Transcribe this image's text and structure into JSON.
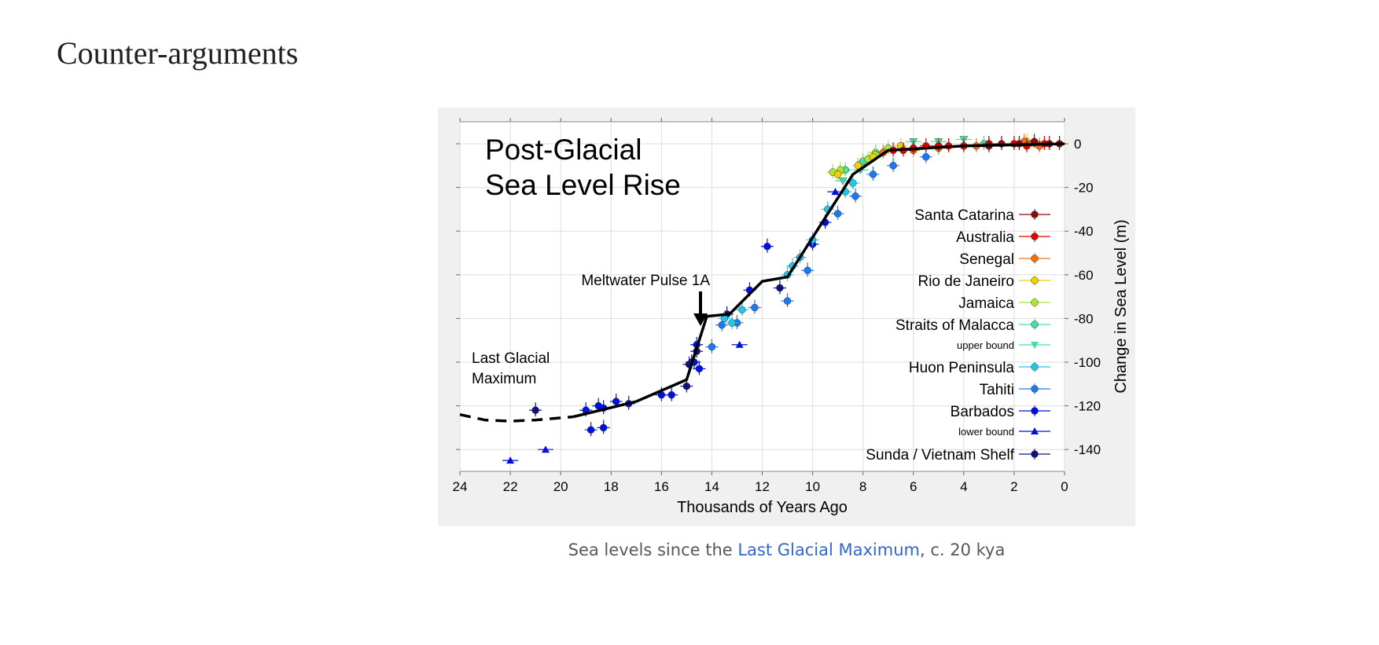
{
  "heading": "Counter-arguments",
  "caption": {
    "prefix": "Sea levels since the ",
    "link": "Last Glacial Maximum",
    "suffix": ", c. 20 kya"
  },
  "chart_data": {
    "type": "scatter",
    "title": [
      "Post-Glacial",
      "Sea Level Rise"
    ],
    "xlabel": "Thousands of Years Ago",
    "ylabel": "Change in Sea Level (m)",
    "xlim": [
      24,
      0
    ],
    "ylim": [
      -150,
      10
    ],
    "xticks": [
      24,
      22,
      20,
      18,
      16,
      14,
      12,
      10,
      8,
      6,
      4,
      2,
      0
    ],
    "yticks": [
      0,
      -20,
      -40,
      -60,
      -80,
      -100,
      -120,
      -140
    ],
    "grid": true,
    "legend_position": "right",
    "annotations": {
      "mwp": "Meltwater Pulse 1A",
      "lgm": [
        "Last Glacial",
        "Maximum"
      ]
    },
    "trend_line": {
      "dashed": [
        [
          24,
          -124
        ],
        [
          23,
          -126.5
        ],
        [
          22,
          -127
        ],
        [
          21,
          -126.5
        ],
        [
          20,
          -125.5
        ],
        [
          19.5,
          -125
        ]
      ],
      "solid": [
        [
          19.5,
          -125
        ],
        [
          17,
          -118
        ],
        [
          15,
          -108
        ],
        [
          14.2,
          -79
        ],
        [
          13.3,
          -78
        ],
        [
          12,
          -63
        ],
        [
          11,
          -61
        ],
        [
          8.4,
          -14
        ],
        [
          7,
          -3
        ],
        [
          4,
          -1
        ],
        [
          0,
          0
        ]
      ]
    },
    "series": [
      {
        "name": "Santa Catarina",
        "color": "#8b0a0a",
        "marker": "circle",
        "small": false,
        "points": [
          [
            3,
            -1
          ],
          [
            2.5,
            0
          ],
          [
            1.2,
            1
          ],
          [
            0.6,
            0
          ],
          [
            0.2,
            0
          ],
          [
            1.8,
            0
          ]
        ]
      },
      {
        "name": "Australia",
        "color": "#e00000",
        "marker": "circle",
        "small": false,
        "points": [
          [
            6.8,
            -3
          ],
          [
            6,
            -2
          ],
          [
            5.5,
            -1
          ],
          [
            5,
            -1
          ],
          [
            4,
            -1
          ],
          [
            3,
            0
          ],
          [
            2,
            0
          ],
          [
            1.5,
            -1
          ],
          [
            0.8,
            0
          ],
          [
            6.4,
            -3
          ],
          [
            4.6,
            -1
          ]
        ]
      },
      {
        "name": "Senegal",
        "color": "#f07010",
        "marker": "circle",
        "small": false,
        "points": [
          [
            7.2,
            -4
          ],
          [
            6,
            -3
          ],
          [
            5,
            -2
          ],
          [
            3.5,
            -1
          ],
          [
            2,
            0
          ],
          [
            1,
            -1
          ],
          [
            1.6,
            1
          ]
        ]
      },
      {
        "name": "Rio de Janeiro",
        "color": "#f0d000",
        "marker": "circle",
        "small": false,
        "points": [
          [
            9.0,
            -14
          ],
          [
            8.2,
            -10
          ],
          [
            7.6,
            -6
          ],
          [
            5,
            -1
          ],
          [
            3,
            0
          ],
          [
            1.5,
            1
          ],
          [
            6.5,
            -1
          ]
        ]
      },
      {
        "name": "Jamaica",
        "color": "#a8e830",
        "marker": "circle",
        "small": false,
        "points": [
          [
            9.2,
            -13
          ],
          [
            8.9,
            -12
          ],
          [
            7.5,
            -5
          ],
          [
            7,
            -2
          ],
          [
            6.5,
            -1
          ],
          [
            7.8,
            -7
          ]
        ]
      },
      {
        "name": "Straits of Malacca",
        "color": "#40e0a0",
        "marker": "circle",
        "small": false,
        "points": [
          [
            8.7,
            -12
          ],
          [
            8,
            -8
          ],
          [
            7.5,
            -4
          ],
          [
            6,
            -2
          ],
          [
            4,
            -1
          ],
          [
            1,
            -1
          ],
          [
            3.2,
            0
          ]
        ]
      },
      {
        "name": "upper bound",
        "color": "#40e0a0",
        "marker": "triangle-down",
        "small": true,
        "points": [
          [
            8.8,
            -17
          ],
          [
            8.1,
            -12
          ],
          [
            6,
            1
          ],
          [
            5,
            1
          ],
          [
            4,
            2
          ]
        ]
      },
      {
        "name": "Huon Peninsula",
        "color": "#20c8e8",
        "marker": "circle",
        "small": false,
        "points": [
          [
            13.5,
            -80
          ],
          [
            12.8,
            -76
          ],
          [
            11,
            -60
          ],
          [
            10.5,
            -52
          ],
          [
            10,
            -44
          ],
          [
            9.4,
            -30
          ],
          [
            8.7,
            -22
          ],
          [
            8.4,
            -18
          ],
          [
            13.2,
            -82
          ],
          [
            10.8,
            -56
          ]
        ]
      },
      {
        "name": "Tahiti",
        "color": "#1e78f0",
        "marker": "circle",
        "small": false,
        "points": [
          [
            13.6,
            -83
          ],
          [
            13,
            -82
          ],
          [
            12.3,
            -75
          ],
          [
            11,
            -72
          ],
          [
            10.2,
            -58
          ],
          [
            9,
            -32
          ],
          [
            8.3,
            -24
          ],
          [
            7.6,
            -14
          ],
          [
            6.8,
            -10
          ],
          [
            5.5,
            -6
          ],
          [
            14,
            -93
          ]
        ]
      },
      {
        "name": "Barbados",
        "color": "#0010e0",
        "marker": "circle",
        "small": false,
        "points": [
          [
            19,
            -122
          ],
          [
            18.5,
            -120
          ],
          [
            18.3,
            -121
          ],
          [
            17.8,
            -118
          ],
          [
            17.3,
            -119
          ],
          [
            16,
            -115
          ],
          [
            15.6,
            -115
          ],
          [
            14.7,
            -100
          ],
          [
            14.5,
            -103
          ],
          [
            12.5,
            -67
          ],
          [
            11.8,
            -47
          ],
          [
            10,
            -46
          ],
          [
            9.5,
            -36
          ],
          [
            18.8,
            -131
          ],
          [
            18.3,
            -130
          ],
          [
            14.6,
            -92
          ]
        ]
      },
      {
        "name": "lower bound",
        "color": "#0010e0",
        "marker": "triangle-up",
        "small": true,
        "points": [
          [
            22,
            -145
          ],
          [
            20.6,
            -140
          ],
          [
            12.9,
            -92
          ],
          [
            9.1,
            -22
          ]
        ]
      },
      {
        "name": "Sunda / Vietnam Shelf",
        "color": "#101080",
        "marker": "circle",
        "small": false,
        "points": [
          [
            21,
            -122
          ],
          [
            14.6,
            -95
          ],
          [
            14.8,
            -100
          ],
          [
            13.4,
            -78
          ],
          [
            11.3,
            -66
          ],
          [
            15,
            -111
          ],
          [
            14.9,
            -101
          ]
        ]
      }
    ]
  }
}
